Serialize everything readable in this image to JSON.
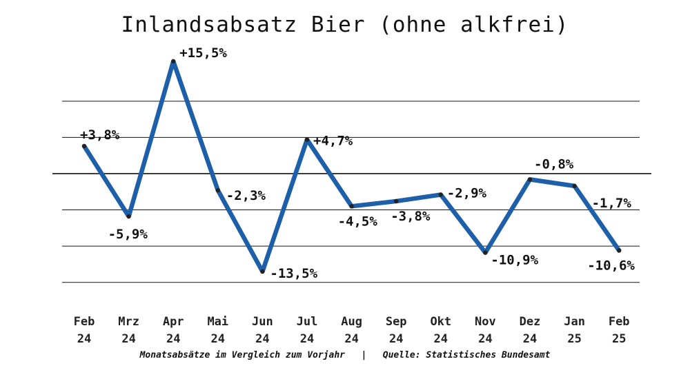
{
  "chart_data": {
    "type": "line",
    "title": "Inlandsabsatz Bier (ohne alkfrei)",
    "categories": [
      [
        "Feb",
        "24"
      ],
      [
        "Mrz",
        "24"
      ],
      [
        "Apr",
        "24"
      ],
      [
        "Mai",
        "24"
      ],
      [
        "Jun",
        "24"
      ],
      [
        "Jul",
        "24"
      ],
      [
        "Aug",
        "24"
      ],
      [
        "Sep",
        "24"
      ],
      [
        "Okt",
        "24"
      ],
      [
        "Nov",
        "24"
      ],
      [
        "Dez",
        "24"
      ],
      [
        "Jan",
        "25"
      ],
      [
        "Feb",
        "25"
      ]
    ],
    "values": [
      3.8,
      -5.9,
      15.5,
      -2.3,
      -13.5,
      4.7,
      -4.5,
      -3.8,
      -2.9,
      -10.9,
      -0.8,
      -1.7,
      -10.6
    ],
    "data_labels": [
      "+3,8%",
      "-5,9%",
      "+15,5%",
      "-2,3%",
      "-13,5%",
      "+4,7%",
      "-4,5%",
      "-3,8%",
      "-2,9%",
      "-10,9%",
      "-0,8%",
      "-1,7%",
      "-10,6%"
    ],
    "ylim": [
      -17.5,
      15.5
    ],
    "grid": true,
    "line_color": "#1d5fa8",
    "marker_color": "#222222"
  },
  "footer": {
    "left": "Monatsabsätze im Vergleich zum Vorjahr",
    "separator": "|",
    "right": "Quelle: Statistisches Bundesamt"
  }
}
